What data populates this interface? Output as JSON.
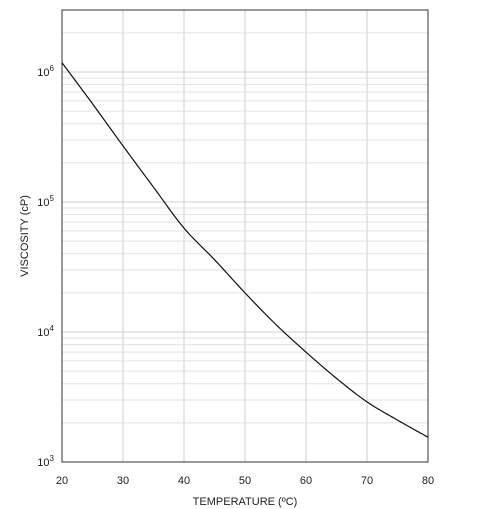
{
  "chart_data": {
    "type": "line",
    "xlabel": "TEMPERATURE (ºC)",
    "ylabel": "VISCOSITY (cP)",
    "xlim": [
      20,
      80
    ],
    "ylim": [
      1000,
      3000000
    ],
    "yscale": "log",
    "grid": true,
    "x_ticks": [
      "20",
      "30",
      "40",
      "50",
      "60",
      "70",
      "80"
    ],
    "y_ticks": [
      {
        "base": "10",
        "exp": "3",
        "value": 1000
      },
      {
        "base": "10",
        "exp": "4",
        "value": 10000
      },
      {
        "base": "10",
        "exp": "5",
        "value": 100000
      },
      {
        "base": "10",
        "exp": "6",
        "value": 1000000
      }
    ],
    "series": [
      {
        "color": "#111111",
        "x": [
          20,
          25,
          30,
          35,
          40,
          45,
          50,
          55,
          60,
          65,
          70,
          75,
          80
        ],
        "y": [
          1180000,
          570000,
          270000,
          130000,
          63000,
          36000,
          20000,
          11500,
          7000,
          4400,
          2900,
          2100,
          1550
        ]
      }
    ]
  }
}
